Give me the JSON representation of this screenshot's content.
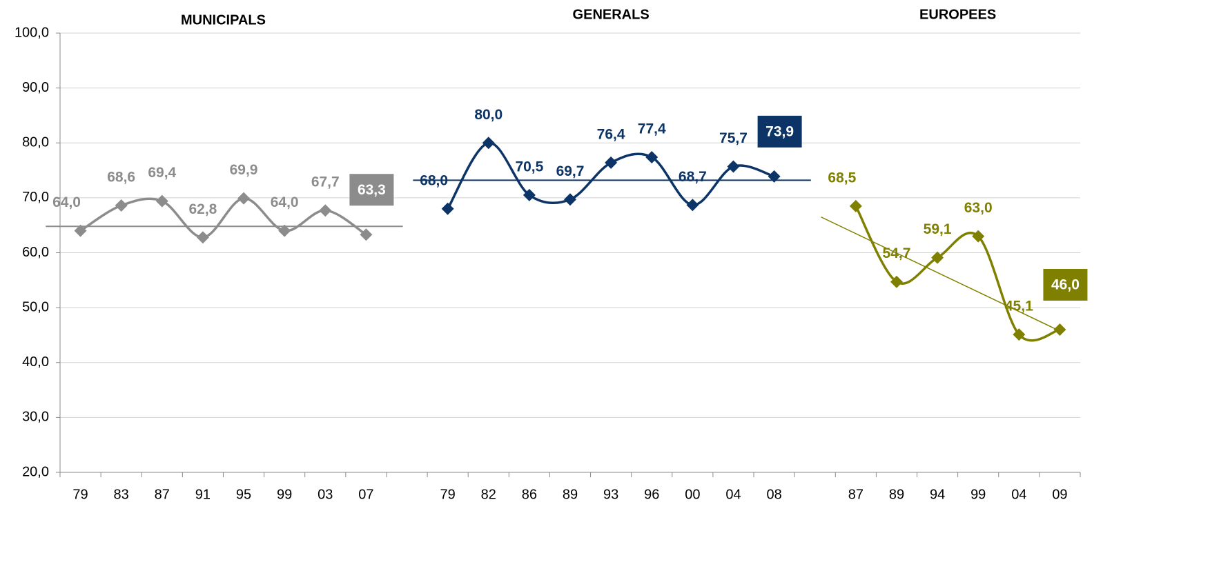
{
  "chart_data": {
    "type": "line",
    "group_titles": [
      "MUNICIPALS",
      "GENERALS",
      "EUROPEES"
    ],
    "categories": [
      "79",
      "83",
      "87",
      "91",
      "95",
      "99",
      "03",
      "07",
      null,
      "79",
      "82",
      "86",
      "89",
      "93",
      "96",
      "00",
      "04",
      "08",
      null,
      "87",
      "89",
      "94",
      "99",
      "04",
      "09"
    ],
    "series": [
      {
        "name": "MUNICIPALS",
        "color": "#8c8c8c",
        "values": [
          64.0,
          68.6,
          69.4,
          62.8,
          69.9,
          64.0,
          67.7,
          63.3,
          null,
          null,
          null,
          null,
          null,
          null,
          null,
          null,
          null,
          null,
          null,
          null,
          null,
          null,
          null,
          null,
          null
        ],
        "value_labels": [
          "64,0",
          "68,6",
          "69,4",
          "62,8",
          "69,9",
          "64,0",
          "67,7",
          "63,3",
          null,
          null,
          null,
          null,
          null,
          null,
          null,
          null,
          null,
          null,
          null,
          null,
          null,
          null,
          null,
          null,
          null
        ],
        "reference_line": 64.8
      },
      {
        "name": "GENERALS",
        "color": "#0d3466",
        "values": [
          null,
          null,
          null,
          null,
          null,
          null,
          null,
          null,
          null,
          68.0,
          80.0,
          70.5,
          69.7,
          76.4,
          77.4,
          68.7,
          75.7,
          73.9,
          null,
          null,
          null,
          null,
          null,
          null,
          null
        ],
        "value_labels": [
          null,
          null,
          null,
          null,
          null,
          null,
          null,
          null,
          null,
          "68,0",
          "80,0",
          "70,5",
          "69,7",
          "76,4",
          "77,4",
          "68,7",
          "75,7",
          "73,9",
          null,
          null,
          null,
          null,
          null,
          null,
          null
        ],
        "reference_line": 73.2
      },
      {
        "name": "EUROPEES",
        "color": "#808000",
        "values": [
          null,
          null,
          null,
          null,
          null,
          null,
          null,
          null,
          null,
          null,
          null,
          null,
          null,
          null,
          null,
          null,
          null,
          null,
          null,
          68.5,
          54.7,
          59.1,
          63.0,
          45.1,
          46.0
        ],
        "value_labels": [
          null,
          null,
          null,
          null,
          null,
          null,
          null,
          null,
          null,
          null,
          null,
          null,
          null,
          null,
          null,
          null,
          null,
          null,
          null,
          "68,5",
          "54,7",
          "59,1",
          "63,0",
          "45,1",
          "46,0"
        ],
        "trend_line": [
          66.5,
          46.1
        ]
      }
    ],
    "ylim": [
      20,
      100
    ],
    "yticks": [
      {
        "value": 20,
        "label": "20,0"
      },
      {
        "value": 30,
        "label": "30,0"
      },
      {
        "value": 40,
        "label": "40,0"
      },
      {
        "value": 50,
        "label": "50,0"
      },
      {
        "value": 60,
        "label": "60,0"
      },
      {
        "value": 70,
        "label": "70,0"
      },
      {
        "value": 80,
        "label": "80,0"
      },
      {
        "value": 90,
        "label": "90,0"
      },
      {
        "value": 100,
        "label": "100,0"
      }
    ],
    "grid": true,
    "smooth": true,
    "highlight_last": true
  }
}
